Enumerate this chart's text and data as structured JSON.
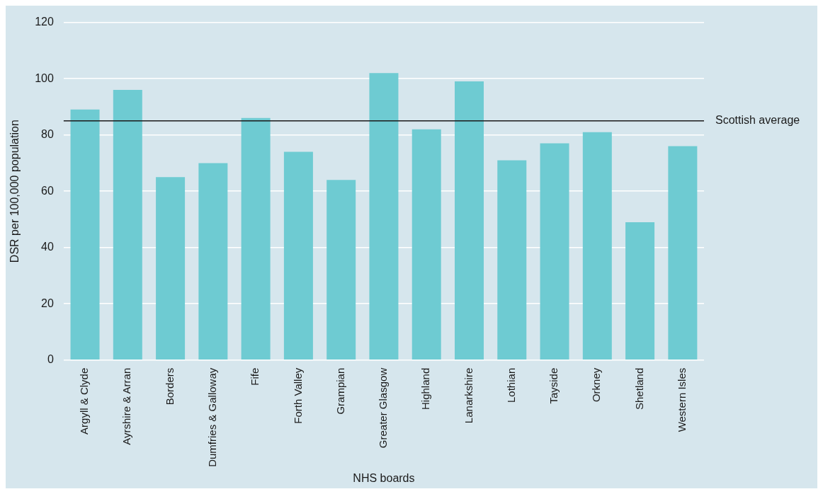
{
  "chart_data": {
    "type": "bar",
    "xlabel": "NHS boards",
    "ylabel": "DSR per 100,000 population",
    "categories": [
      "Argyll & Clyde",
      "Ayrshire & Arran",
      "Borders",
      "Dumfries & Galloway",
      "Fife",
      "Forth Valley",
      "Grampian",
      "Greater Glasgow",
      "Highland",
      "Lanarkshire",
      "Lothian",
      "Tayside",
      "Orkney",
      "Shetland",
      "Western Isles"
    ],
    "values": [
      89,
      96,
      65,
      70,
      86,
      74,
      64,
      102,
      82,
      99,
      71,
      77,
      81,
      49,
      76
    ],
    "color": "#6ecbd2",
    "ylim": [
      0,
      120
    ],
    "yticks": [
      0,
      20,
      40,
      60,
      80,
      100,
      120
    ],
    "grid": "y",
    "legend": false,
    "ref_lines": [
      {
        "axis": "y",
        "value": 85,
        "label": "Scottish average",
        "color": "#1a1a1a"
      }
    ]
  }
}
